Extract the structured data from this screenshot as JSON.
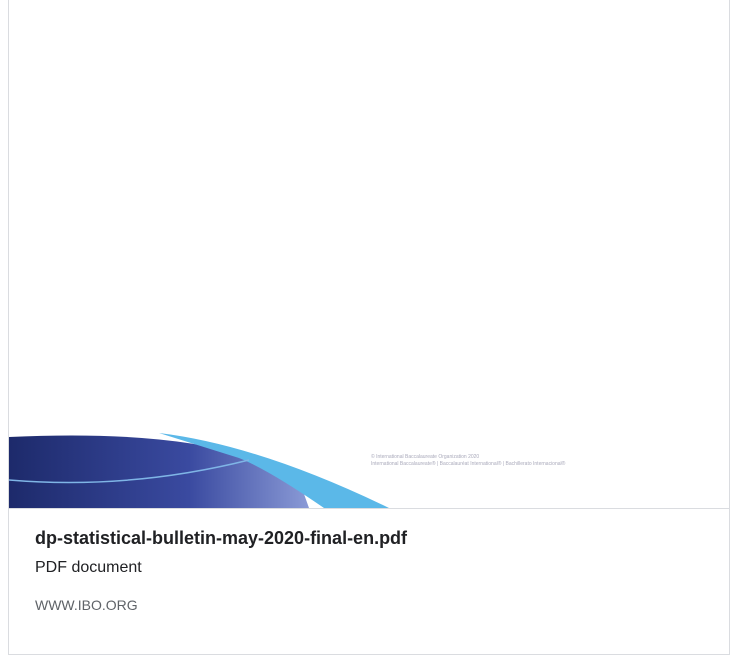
{
  "preview": {
    "copyright": "© International Baccalaureate Organization 2020",
    "trademark": "International Baccalaureate® | Baccalauréat International® | Bachillerato Internacional®"
  },
  "file": {
    "name": "dp-statistical-bulletin-may-2020-final-en.pdf",
    "type": "PDF document",
    "site": "WWW.IBO.ORG"
  }
}
